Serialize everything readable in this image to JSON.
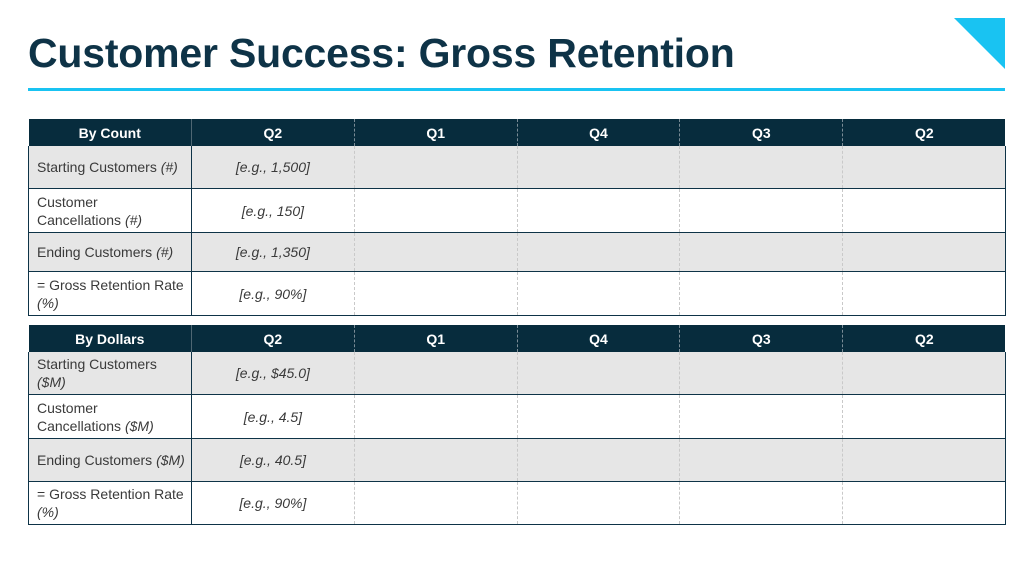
{
  "title": "Customer Success: Gross Retention",
  "colors": {
    "title": "#0e3347",
    "accent": "#19c3f2",
    "header_bg": "#072c3d",
    "shaded_row": "#e6e6e6"
  },
  "by_count": {
    "header": [
      "By Count",
      "Q2",
      "Q1",
      "Q4",
      "Q3",
      "Q2"
    ],
    "rows": [
      {
        "label": "Starting Customers",
        "unit": "(#)",
        "example": "[e.g., 1,500]"
      },
      {
        "label": "Customer Cancellations",
        "unit": "(#)",
        "example": "[e.g., 150]"
      },
      {
        "label": "Ending Customers",
        "unit": "(#)",
        "example": "[e.g., 1,350]"
      },
      {
        "label": "= Gross Retention Rate",
        "unit": "(%)",
        "example": "[e.g., 90%]"
      }
    ]
  },
  "by_dollars": {
    "header": [
      "By Dollars",
      "Q2",
      "Q1",
      "Q4",
      "Q3",
      "Q2"
    ],
    "rows": [
      {
        "label": "Starting Customers",
        "unit": "($M)",
        "example": "[e.g., $45.0]"
      },
      {
        "label": "Customer Cancellations",
        "unit": "($M)",
        "example": "[e.g., 4.5]"
      },
      {
        "label": "Ending Customers",
        "unit": "($M)",
        "example": "[e.g., 40.5]"
      },
      {
        "label": "= Gross Retention Rate",
        "unit": "(%)",
        "example": "[e.g., 90%]"
      }
    ]
  }
}
